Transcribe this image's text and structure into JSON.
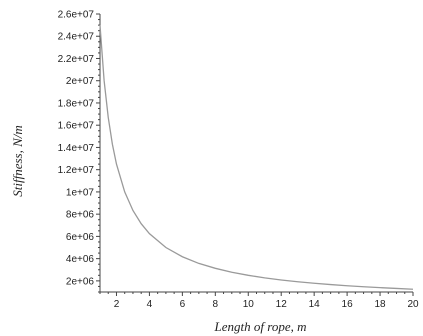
{
  "chart_data": {
    "type": "line",
    "title": "",
    "xlabel": "Length of rope, m",
    "ylabel": "Stiffness, N/m",
    "xlim": [
      1,
      20
    ],
    "ylim": [
      1000000,
      26000000
    ],
    "x_ticks": [
      2,
      4,
      6,
      8,
      10,
      12,
      14,
      16,
      18,
      20
    ],
    "x_tick_labels": [
      "2",
      "4",
      "6",
      "8",
      "10",
      "12",
      "14",
      "16",
      "18",
      "20"
    ],
    "y_ticks": [
      2000000,
      4000000,
      6000000,
      8000000,
      10000000,
      12000000,
      14000000,
      16000000,
      18000000,
      20000000,
      22000000,
      24000000,
      26000000
    ],
    "y_tick_labels": [
      "2e+06",
      "4e+06",
      "6e+06",
      "8e+06",
      "1e+07",
      "1.2e+07",
      "1.4e+07",
      "1.6e+07",
      "1.8e+07",
      "2e+07",
      "2.2e+07",
      "2.4e+07",
      "2.6e+07"
    ],
    "grid": false,
    "series": [
      {
        "color": "#9a9a9a",
        "x": [
          1,
          1.25,
          1.5,
          1.75,
          2,
          2.5,
          3,
          3.5,
          4,
          5,
          6,
          7,
          8,
          9,
          10,
          11,
          12,
          13,
          14,
          15,
          16,
          17,
          18,
          19,
          20
        ],
        "y": [
          25000000,
          20000000,
          16700000,
          14300000,
          12500000,
          10000000,
          8330000,
          7140000,
          6250000,
          5000000,
          4170000,
          3570000,
          3130000,
          2780000,
          2500000,
          2270000,
          2080000,
          1920000,
          1790000,
          1670000,
          1560000,
          1470000,
          1390000,
          1320000,
          1250000
        ]
      }
    ]
  }
}
